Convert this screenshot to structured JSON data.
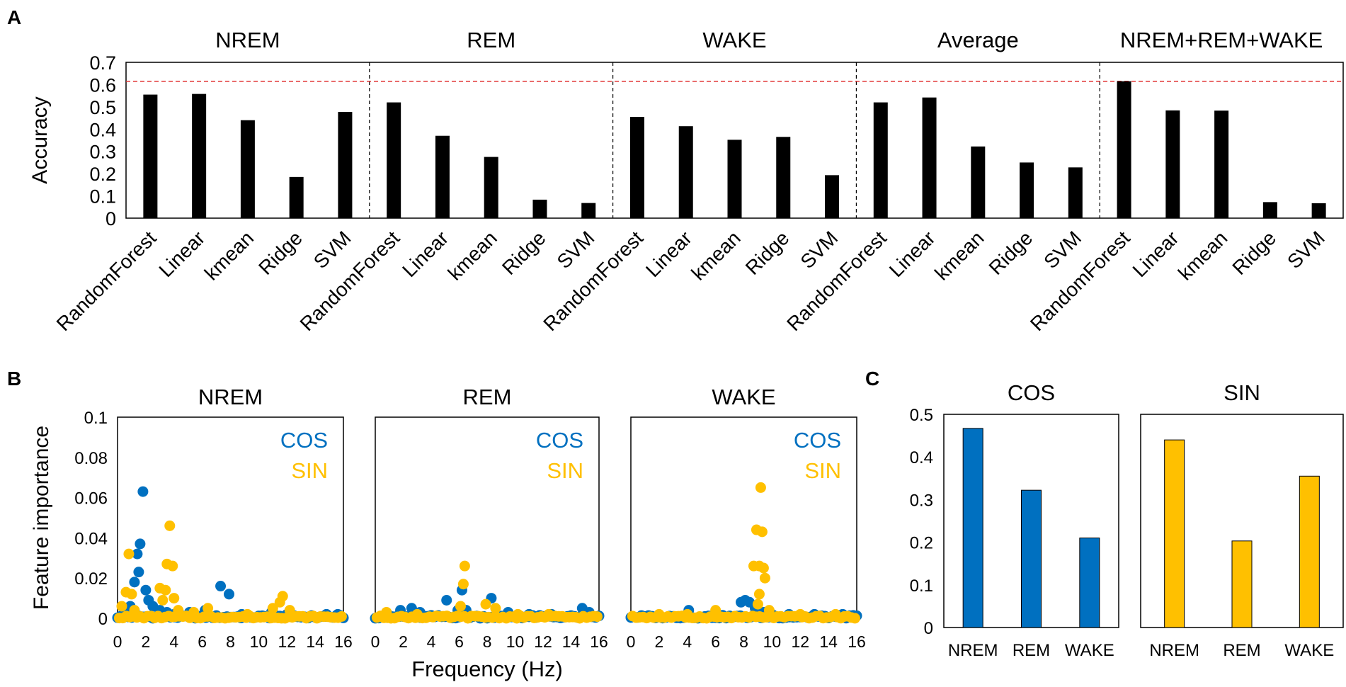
{
  "colors": {
    "cos": "#0070C0",
    "sin": "#FFC000",
    "bar": "#000000",
    "ref_line": "#E03030"
  },
  "chart_data": [
    {
      "panel": "A",
      "type": "bar",
      "panel_label": "A",
      "ylabel": "Accuracy",
      "ylim": [
        0,
        0.7
      ],
      "yticks": [
        "0",
        "0.1",
        "0.2",
        "0.3",
        "0.4",
        "0.5",
        "0.6",
        "0.7"
      ],
      "reference_line": 0.615,
      "categories": [
        "RandomForest",
        "Linear",
        "kmean",
        "Ridge",
        "SVM"
      ],
      "groups": [
        {
          "title": "NREM",
          "values": [
            0.555,
            0.558,
            0.44,
            0.185,
            0.477
          ]
        },
        {
          "title": "REM",
          "values": [
            0.52,
            0.37,
            0.275,
            0.083,
            0.068
          ]
        },
        {
          "title": "WAKE",
          "values": [
            0.455,
            0.413,
            0.352,
            0.365,
            0.193
          ]
        },
        {
          "title": "Average",
          "values": [
            0.52,
            0.542,
            0.322,
            0.25,
            0.228
          ]
        },
        {
          "title": "NREM+REM+WAKE",
          "values": [
            0.615,
            0.484,
            0.483,
            0.072,
            0.067
          ]
        }
      ]
    },
    {
      "panel": "B",
      "type": "scatter",
      "panel_label": "B",
      "ylabel": "Feature importance",
      "xlabel": "Frequency (Hz)",
      "xlim": [
        0,
        16
      ],
      "ylim": [
        0,
        0.1
      ],
      "xticks": [
        "0",
        "2",
        "4",
        "6",
        "8",
        "10",
        "12",
        "14",
        "16"
      ],
      "yticks": [
        "0",
        "0.02",
        "0.04",
        "0.06",
        "0.08",
        "0.1"
      ],
      "legend": [
        "COS",
        "SIN"
      ],
      "panels": [
        {
          "title": "NREM",
          "cos_peaks": [
            [
              0.5,
              0.002
            ],
            [
              0.9,
              0.006
            ],
            [
              1.2,
              0.018
            ],
            [
              1.4,
              0.032
            ],
            [
              1.5,
              0.023
            ],
            [
              1.6,
              0.037
            ],
            [
              1.8,
              0.063
            ],
            [
              2.0,
              0.014
            ],
            [
              2.2,
              0.009
            ],
            [
              2.5,
              0.006
            ],
            [
              3.0,
              0.004
            ],
            [
              3.5,
              0.003
            ],
            [
              4.0,
              0.002
            ],
            [
              7.3,
              0.016
            ],
            [
              7.9,
              0.012
            ],
            [
              6.2,
              0.004
            ],
            [
              5.1,
              0.003
            ],
            [
              8.8,
              0.002
            ],
            [
              10.9,
              0.003
            ],
            [
              12.0,
              0.002
            ],
            [
              14.8,
              0.002
            ],
            [
              15.6,
              0.002
            ]
          ],
          "sin_peaks": [
            [
              0.3,
              0.006
            ],
            [
              0.6,
              0.013
            ],
            [
              0.8,
              0.032
            ],
            [
              1.0,
              0.012
            ],
            [
              1.2,
              0.004
            ],
            [
              3.0,
              0.015
            ],
            [
              3.2,
              0.009
            ],
            [
              3.4,
              0.014
            ],
            [
              3.5,
              0.027
            ],
            [
              3.7,
              0.046
            ],
            [
              3.9,
              0.026
            ],
            [
              4.0,
              0.01
            ],
            [
              4.3,
              0.004
            ],
            [
              6.4,
              0.005
            ],
            [
              11.0,
              0.005
            ],
            [
              11.5,
              0.008
            ],
            [
              11.7,
              0.011
            ],
            [
              12.2,
              0.004
            ],
            [
              5.4,
              0.003
            ],
            [
              9.2,
              0.002
            ]
          ]
        },
        {
          "title": "REM",
          "cos_peaks": [
            [
              1.8,
              0.004
            ],
            [
              2.6,
              0.005
            ],
            [
              3.2,
              0.003
            ],
            [
              5.1,
              0.009
            ],
            [
              5.9,
              0.004
            ],
            [
              6.2,
              0.014
            ],
            [
              6.5,
              0.004
            ],
            [
              8.3,
              0.01
            ],
            [
              9.5,
              0.003
            ],
            [
              14.8,
              0.005
            ],
            [
              15.3,
              0.003
            ],
            [
              11.0,
              0.002
            ],
            [
              12.6,
              0.002
            ]
          ],
          "sin_peaks": [
            [
              6.1,
              0.006
            ],
            [
              6.3,
              0.017
            ],
            [
              6.4,
              0.026
            ],
            [
              7.9,
              0.007
            ],
            [
              8.6,
              0.005
            ],
            [
              0.8,
              0.003
            ],
            [
              3.0,
              0.002
            ],
            [
              10.2,
              0.002
            ],
            [
              12.4,
              0.002
            ]
          ]
        },
        {
          "title": "WAKE",
          "cos_peaks": [
            [
              4.1,
              0.004
            ],
            [
              7.8,
              0.008
            ],
            [
              8.1,
              0.009
            ],
            [
              8.4,
              0.008
            ],
            [
              8.8,
              0.005
            ],
            [
              9.4,
              0.003
            ],
            [
              10.0,
              0.002
            ],
            [
              11.2,
              0.002
            ],
            [
              13.0,
              0.002
            ],
            [
              15.0,
              0.002
            ]
          ],
          "sin_peaks": [
            [
              6.0,
              0.004
            ],
            [
              8.7,
              0.026
            ],
            [
              8.9,
              0.044
            ],
            [
              9.1,
              0.026
            ],
            [
              9.2,
              0.065
            ],
            [
              9.3,
              0.043
            ],
            [
              9.4,
              0.025
            ],
            [
              9.5,
              0.02
            ],
            [
              9.1,
              0.012
            ],
            [
              9.0,
              0.007
            ],
            [
              9.8,
              0.004
            ],
            [
              2.0,
              0.002
            ],
            [
              4.0,
              0.002
            ],
            [
              12.0,
              0.002
            ],
            [
              14.5,
              0.002
            ]
          ]
        }
      ]
    },
    {
      "panel": "C",
      "type": "bar",
      "panel_label": "C",
      "ylim": [
        0,
        0.5
      ],
      "yticks": [
        "0",
        "0.1",
        "0.2",
        "0.3",
        "0.4",
        "0.5"
      ],
      "categories": [
        "NREM",
        "REM",
        "WAKE"
      ],
      "series": [
        {
          "name": "COS",
          "values": [
            0.467,
            0.322,
            0.21
          ]
        },
        {
          "name": "SIN",
          "values": [
            0.44,
            0.203,
            0.355
          ]
        }
      ]
    }
  ]
}
